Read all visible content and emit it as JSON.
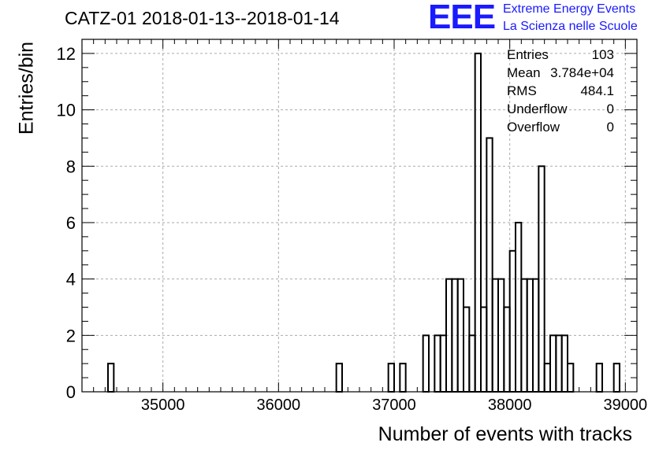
{
  "chart_data": {
    "type": "bar",
    "title": "CATZ-01 2018-01-13--2018-01-14",
    "xlabel": "Number of events with tracks",
    "ylabel": "Entries/bin",
    "xlim": [
      34300,
      39100
    ],
    "ylim": [
      0,
      12.5
    ],
    "xticks": [
      35000,
      36000,
      37000,
      38000,
      39000
    ],
    "yticks": [
      0,
      2,
      4,
      6,
      8,
      10,
      12
    ],
    "grid": true,
    "bin_width": 50,
    "bins": [
      {
        "x": 34550,
        "y": 1
      },
      {
        "x": 36525,
        "y": 1
      },
      {
        "x": 36975,
        "y": 1
      },
      {
        "x": 37075,
        "y": 1
      },
      {
        "x": 37275,
        "y": 2
      },
      {
        "x": 37375,
        "y": 2
      },
      {
        "x": 37425,
        "y": 2
      },
      {
        "x": 37475,
        "y": 4
      },
      {
        "x": 37525,
        "y": 4
      },
      {
        "x": 37575,
        "y": 4
      },
      {
        "x": 37625,
        "y": 3
      },
      {
        "x": 37675,
        "y": 2
      },
      {
        "x": 37725,
        "y": 12
      },
      {
        "x": 37775,
        "y": 3
      },
      {
        "x": 37825,
        "y": 9
      },
      {
        "x": 37875,
        "y": 4
      },
      {
        "x": 37925,
        "y": 4
      },
      {
        "x": 37975,
        "y": 3
      },
      {
        "x": 38025,
        "y": 5
      },
      {
        "x": 38075,
        "y": 6
      },
      {
        "x": 38125,
        "y": 4
      },
      {
        "x": 38175,
        "y": 4
      },
      {
        "x": 38225,
        "y": 4
      },
      {
        "x": 38275,
        "y": 8
      },
      {
        "x": 38325,
        "y": 1
      },
      {
        "x": 38375,
        "y": 2
      },
      {
        "x": 38425,
        "y": 2
      },
      {
        "x": 38475,
        "y": 2
      },
      {
        "x": 38525,
        "y": 1
      },
      {
        "x": 38775,
        "y": 1
      },
      {
        "x": 38925,
        "y": 1
      }
    ],
    "stats": [
      {
        "label": "Entries",
        "value": "103"
      },
      {
        "label": "Mean",
        "value": "3.784e+04"
      },
      {
        "label": "RMS",
        "value": "484.1"
      },
      {
        "label": "Underflow",
        "value": "0"
      },
      {
        "label": "Overflow",
        "value": "0"
      }
    ]
  },
  "logo": {
    "text": "EEE",
    "line1": "Extreme Energy Events",
    "line2": "La Scienza nelle Scuole",
    "color": "#1a1aff"
  }
}
